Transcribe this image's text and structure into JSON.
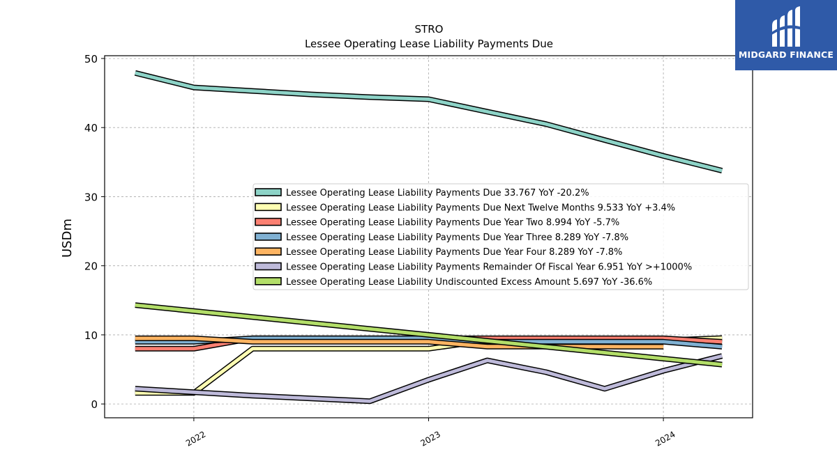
{
  "logo": {
    "text": "MIDGARD FINANCE",
    "bg_color": "#2f5aa8"
  },
  "chart_data": {
    "type": "line",
    "title": "STRO",
    "subtitle": "Lessee Operating Lease Liability Payments Due",
    "ylabel": "USDm",
    "xlabel": "",
    "ylim": [
      -2,
      50.4
    ],
    "yticks": [
      0,
      10,
      20,
      30,
      40,
      50
    ],
    "xlim": [
      2021.62,
      2024.38
    ],
    "xticks": [
      {
        "value": 2022,
        "label": "2022"
      },
      {
        "value": 2023,
        "label": "2023"
      },
      {
        "value": 2024,
        "label": "2024"
      }
    ],
    "grid": true,
    "legend_position": "center-right",
    "series": [
      {
        "name": "Lessee Operating Lease Liability Payments Due  33.767 YoY -20.2%",
        "color": "#8dd3c7",
        "x": [
          2021.75,
          2022.0,
          2022.25,
          2022.5,
          2022.75,
          2023.0,
          2023.25,
          2023.5,
          2023.75,
          2024.0,
          2024.25
        ],
        "y": [
          47.9,
          45.8,
          45.3,
          44.8,
          44.4,
          44.1,
          42.3,
          40.5,
          38.2,
          35.9,
          33.767
        ]
      },
      {
        "name": "Lessee Operating Lease Liability Payments Due Next Twelve Months  9.533 YoY +3.4%",
        "color": "#ffffb3",
        "x": [
          2021.75,
          2022.0,
          2022.25,
          2022.5,
          2022.75,
          2023.0,
          2023.25,
          2023.5,
          2023.75,
          2024.0,
          2024.25
        ],
        "y": [
          1.6,
          1.6,
          8.0,
          8.0,
          8.0,
          8.0,
          9.2,
          9.2,
          9.2,
          9.2,
          9.533
        ]
      },
      {
        "name": "Lessee Operating Lease Liability Payments Due Year Two  8.994 YoY -5.7%",
        "color": "#fb8072",
        "x": [
          2021.75,
          2022.0,
          2022.25,
          2022.5,
          2022.75,
          2023.0,
          2023.25,
          2023.5,
          2023.75,
          2024.0,
          2024.25
        ],
        "y": [
          8.0,
          8.0,
          9.5,
          9.5,
          9.5,
          9.5,
          9.5,
          9.5,
          9.5,
          9.5,
          8.994
        ]
      },
      {
        "name": "Lessee Operating Lease Liability Payments Due Year Three  8.289 YoY -7.8%",
        "color": "#80b1d3",
        "x": [
          2021.75,
          2022.0,
          2022.25,
          2022.5,
          2022.75,
          2023.0,
          2023.25,
          2023.5,
          2023.75,
          2024.0,
          2024.25
        ],
        "y": [
          9.0,
          9.0,
          9.5,
          9.5,
          9.5,
          9.5,
          9.0,
          9.0,
          9.0,
          9.0,
          8.289
        ]
      },
      {
        "name": "Lessee Operating Lease Liability Payments Due Year Four  8.289 YoY -7.8%",
        "color": "#fdb462",
        "x": [
          2021.75,
          2022.0,
          2022.25,
          2022.5,
          2022.75,
          2023.0,
          2023.25,
          2023.5,
          2023.75,
          2024.0
        ],
        "y": [
          9.5,
          9.5,
          9.0,
          9.0,
          9.0,
          9.0,
          8.3,
          8.3,
          8.3,
          8.289
        ]
      },
      {
        "name": "Lessee Operating Lease Liability Payments Remainder Of Fiscal Year  6.951 YoY >+1000%",
        "color": "#bebada",
        "x": [
          2021.75,
          2022.0,
          2022.25,
          2022.5,
          2022.75,
          2023.0,
          2023.25,
          2023.5,
          2023.75,
          2024.0,
          2024.25
        ],
        "y": [
          2.2,
          1.7,
          1.2,
          0.8,
          0.4,
          3.5,
          6.3,
          4.6,
          2.2,
          4.8,
          6.951
        ]
      },
      {
        "name": "Lessee Operating Lease Liability Undiscounted Excess Amount  5.697 YoY -36.6%",
        "color": "#b3de69",
        "x": [
          2021.75,
          2024.25
        ],
        "y": [
          14.3,
          5.697
        ]
      }
    ]
  }
}
